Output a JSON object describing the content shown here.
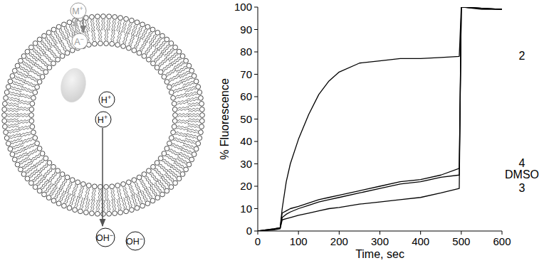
{
  "diagram": {
    "ions": [
      {
        "symbol": "M",
        "charge": "+"
      },
      {
        "symbol": "A",
        "charge": "−"
      },
      {
        "symbol": "H",
        "charge": "+"
      },
      {
        "symbol": "H",
        "charge": "+"
      },
      {
        "symbol": "OH",
        "charge": "−"
      },
      {
        "symbol": "OH",
        "charge": "−"
      }
    ]
  },
  "chart_data": {
    "type": "line",
    "x_label": "Time, sec",
    "y_label": "% Fluorescence",
    "x": [
      0,
      20,
      40,
      55,
      60,
      70,
      80,
      100,
      125,
      150,
      175,
      200,
      250,
      300,
      350,
      400,
      450,
      495,
      500,
      505,
      550,
      600
    ],
    "series": [
      {
        "name": "2",
        "color": "#000000",
        "values": [
          0,
          0.5,
          1,
          1.5,
          10,
          22,
          30,
          41,
          52,
          61,
          67,
          71,
          75,
          76,
          77,
          77,
          77.5,
          78,
          100,
          100,
          99.5,
          99
        ]
      },
      {
        "name": "4",
        "color": "#000000",
        "values": [
          0,
          0.5,
          1,
          1.5,
          8,
          9,
          10,
          11,
          12.5,
          14,
          15,
          16,
          18,
          20,
          22,
          23,
          25,
          28,
          100,
          100,
          99,
          99
        ]
      },
      {
        "name": "DMSO",
        "color": "#000000",
        "values": [
          0,
          0.3,
          0.8,
          1.2,
          6,
          7.5,
          8.5,
          10,
          11.5,
          13,
          14,
          15,
          17,
          19,
          21,
          22,
          24,
          25,
          100,
          100,
          99.5,
          99
        ]
      },
      {
        "name": "3",
        "color": "#000000",
        "values": [
          0,
          0.2,
          0.5,
          1,
          5,
          5.5,
          6,
          7,
          8,
          9,
          10,
          10.5,
          12,
          13,
          14,
          15,
          17,
          19,
          100,
          100,
          99.5,
          99
        ]
      }
    ],
    "xlim": [
      0,
      600
    ],
    "ylim": [
      0,
      100
    ],
    "xticks": [
      0,
      100,
      200,
      300,
      400,
      500,
      600
    ],
    "yticks": [
      0,
      10,
      20,
      30,
      40,
      50,
      60,
      70,
      80,
      90,
      100
    ],
    "grid": false
  }
}
